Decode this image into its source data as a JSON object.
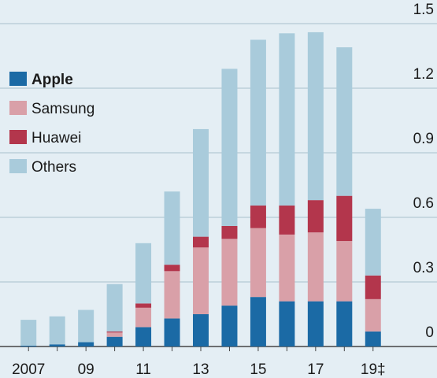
{
  "chart_data": {
    "type": "stacked_bar",
    "categories": [
      "2007",
      null,
      "09",
      null,
      "11",
      null,
      "13",
      null,
      "15",
      null,
      "17",
      null,
      "19‡"
    ],
    "series": [
      {
        "name": "Apple",
        "color": "#1b6aa5",
        "values": [
          0.004,
          0.01,
          0.02,
          0.045,
          0.09,
          0.13,
          0.15,
          0.19,
          0.23,
          0.21,
          0.21,
          0.21,
          0.07
        ]
      },
      {
        "name": "Samsung",
        "color": "#d9a0a8",
        "values": [
          0,
          0,
          0,
          0.02,
          0.09,
          0.22,
          0.31,
          0.31,
          0.32,
          0.31,
          0.32,
          0.28,
          0.15
        ]
      },
      {
        "name": "Huawei",
        "color": "#b3364c",
        "values": [
          0,
          0,
          0,
          0.005,
          0.02,
          0.03,
          0.05,
          0.06,
          0.105,
          0.135,
          0.15,
          0.21,
          0.11
        ]
      },
      {
        "name": "Others",
        "color": "#a9cbdb",
        "values": [
          0.12,
          0.13,
          0.15,
          0.22,
          0.28,
          0.34,
          0.5,
          0.73,
          0.77,
          0.8,
          0.78,
          0.69,
          0.31
        ]
      }
    ],
    "ylim": [
      0,
      1.5
    ],
    "yticks": [
      0,
      0.3,
      0.6,
      0.9,
      1.2,
      1.5
    ],
    "grid": true
  }
}
